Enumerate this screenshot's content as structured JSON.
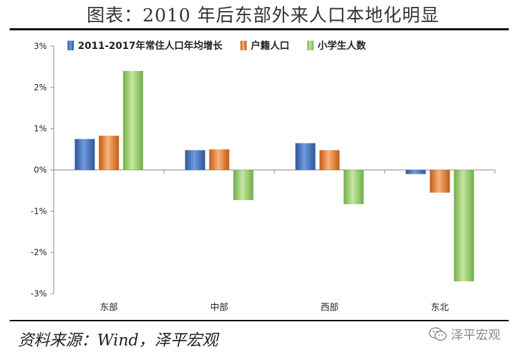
{
  "title": "图表：2010 年后东部外来人口本地化明显",
  "source": "资料来源：Wind，泽平宏观",
  "watermark": "泽平宏观",
  "chart_data": {
    "type": "bar",
    "categories": [
      "东部",
      "中部",
      "西部",
      "东北"
    ],
    "series": [
      {
        "name": "2011-2017年常住人口年均增长",
        "color": "#4472C4",
        "values": [
          0.75,
          0.48,
          0.65,
          -0.1
        ]
      },
      {
        "name": "户籍人口",
        "color": "#ED7D31",
        "values": [
          0.83,
          0.5,
          0.48,
          -0.55
        ]
      },
      {
        "name": "小学生人数",
        "color": "#92D050",
        "values": [
          2.4,
          -0.73,
          -0.83,
          -2.7
        ]
      }
    ],
    "ylim": [
      -3,
      3
    ],
    "yticks": [
      -3,
      -2,
      -1,
      0,
      1,
      2,
      3
    ],
    "ytick_labels": [
      "-3%",
      "-2%",
      "-1%",
      "0%",
      "1%",
      "2%",
      "3%"
    ],
    "legend_position": "top",
    "grid": false
  }
}
